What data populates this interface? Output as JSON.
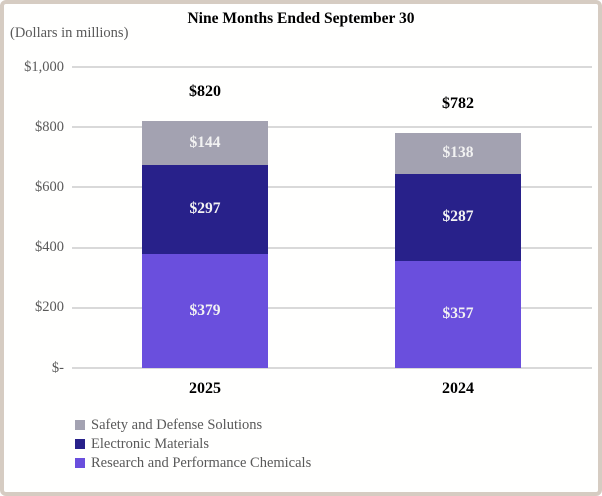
{
  "header": {
    "title": "Nine Months Ended September 30",
    "note": "(Dollars in millions)"
  },
  "chart_data": {
    "type": "bar",
    "stacked": true,
    "title": "Nine Months Ended September 30",
    "units_note": "(Dollars in millions)",
    "categories": [
      "2025",
      "2024"
    ],
    "series": [
      {
        "name": "Research and Performance Chemicals",
        "color": "#6a4fdd",
        "values": [
          379,
          357
        ],
        "labels": [
          "$379",
          "$357"
        ]
      },
      {
        "name": "Electronic Materials",
        "color": "#28218a",
        "values": [
          297,
          287
        ],
        "labels": [
          "$297",
          "$287"
        ]
      },
      {
        "name": "Safety and Defense Solutions",
        "color": "#a3a2b1",
        "values": [
          144,
          138
        ],
        "labels": [
          "$144",
          "$138"
        ]
      }
    ],
    "totals": [
      820,
      782
    ],
    "total_labels": [
      "$820",
      "$782"
    ],
    "y_ticks": [
      {
        "value": 1000,
        "label": "$1,000"
      },
      {
        "value": 800,
        "label": "$800"
      },
      {
        "value": 600,
        "label": "$600"
      },
      {
        "value": 400,
        "label": "$400"
      },
      {
        "value": 200,
        "label": "$200"
      },
      {
        "value": 0,
        "label": "$-"
      }
    ],
    "ylim": [
      0,
      1000
    ],
    "grid": true,
    "legend_position": "bottom-left",
    "legend": [
      "Safety and Defense Solutions",
      "Electronic Materials",
      "Research and Performance Chemicals"
    ]
  },
  "colors": {
    "gridline": "#d9d9d9",
    "border": "#d6ccc2",
    "axis_text": "#595959",
    "segment_label": "#f2f2f2",
    "title_text": "#000000",
    "background": "#fffffe"
  }
}
